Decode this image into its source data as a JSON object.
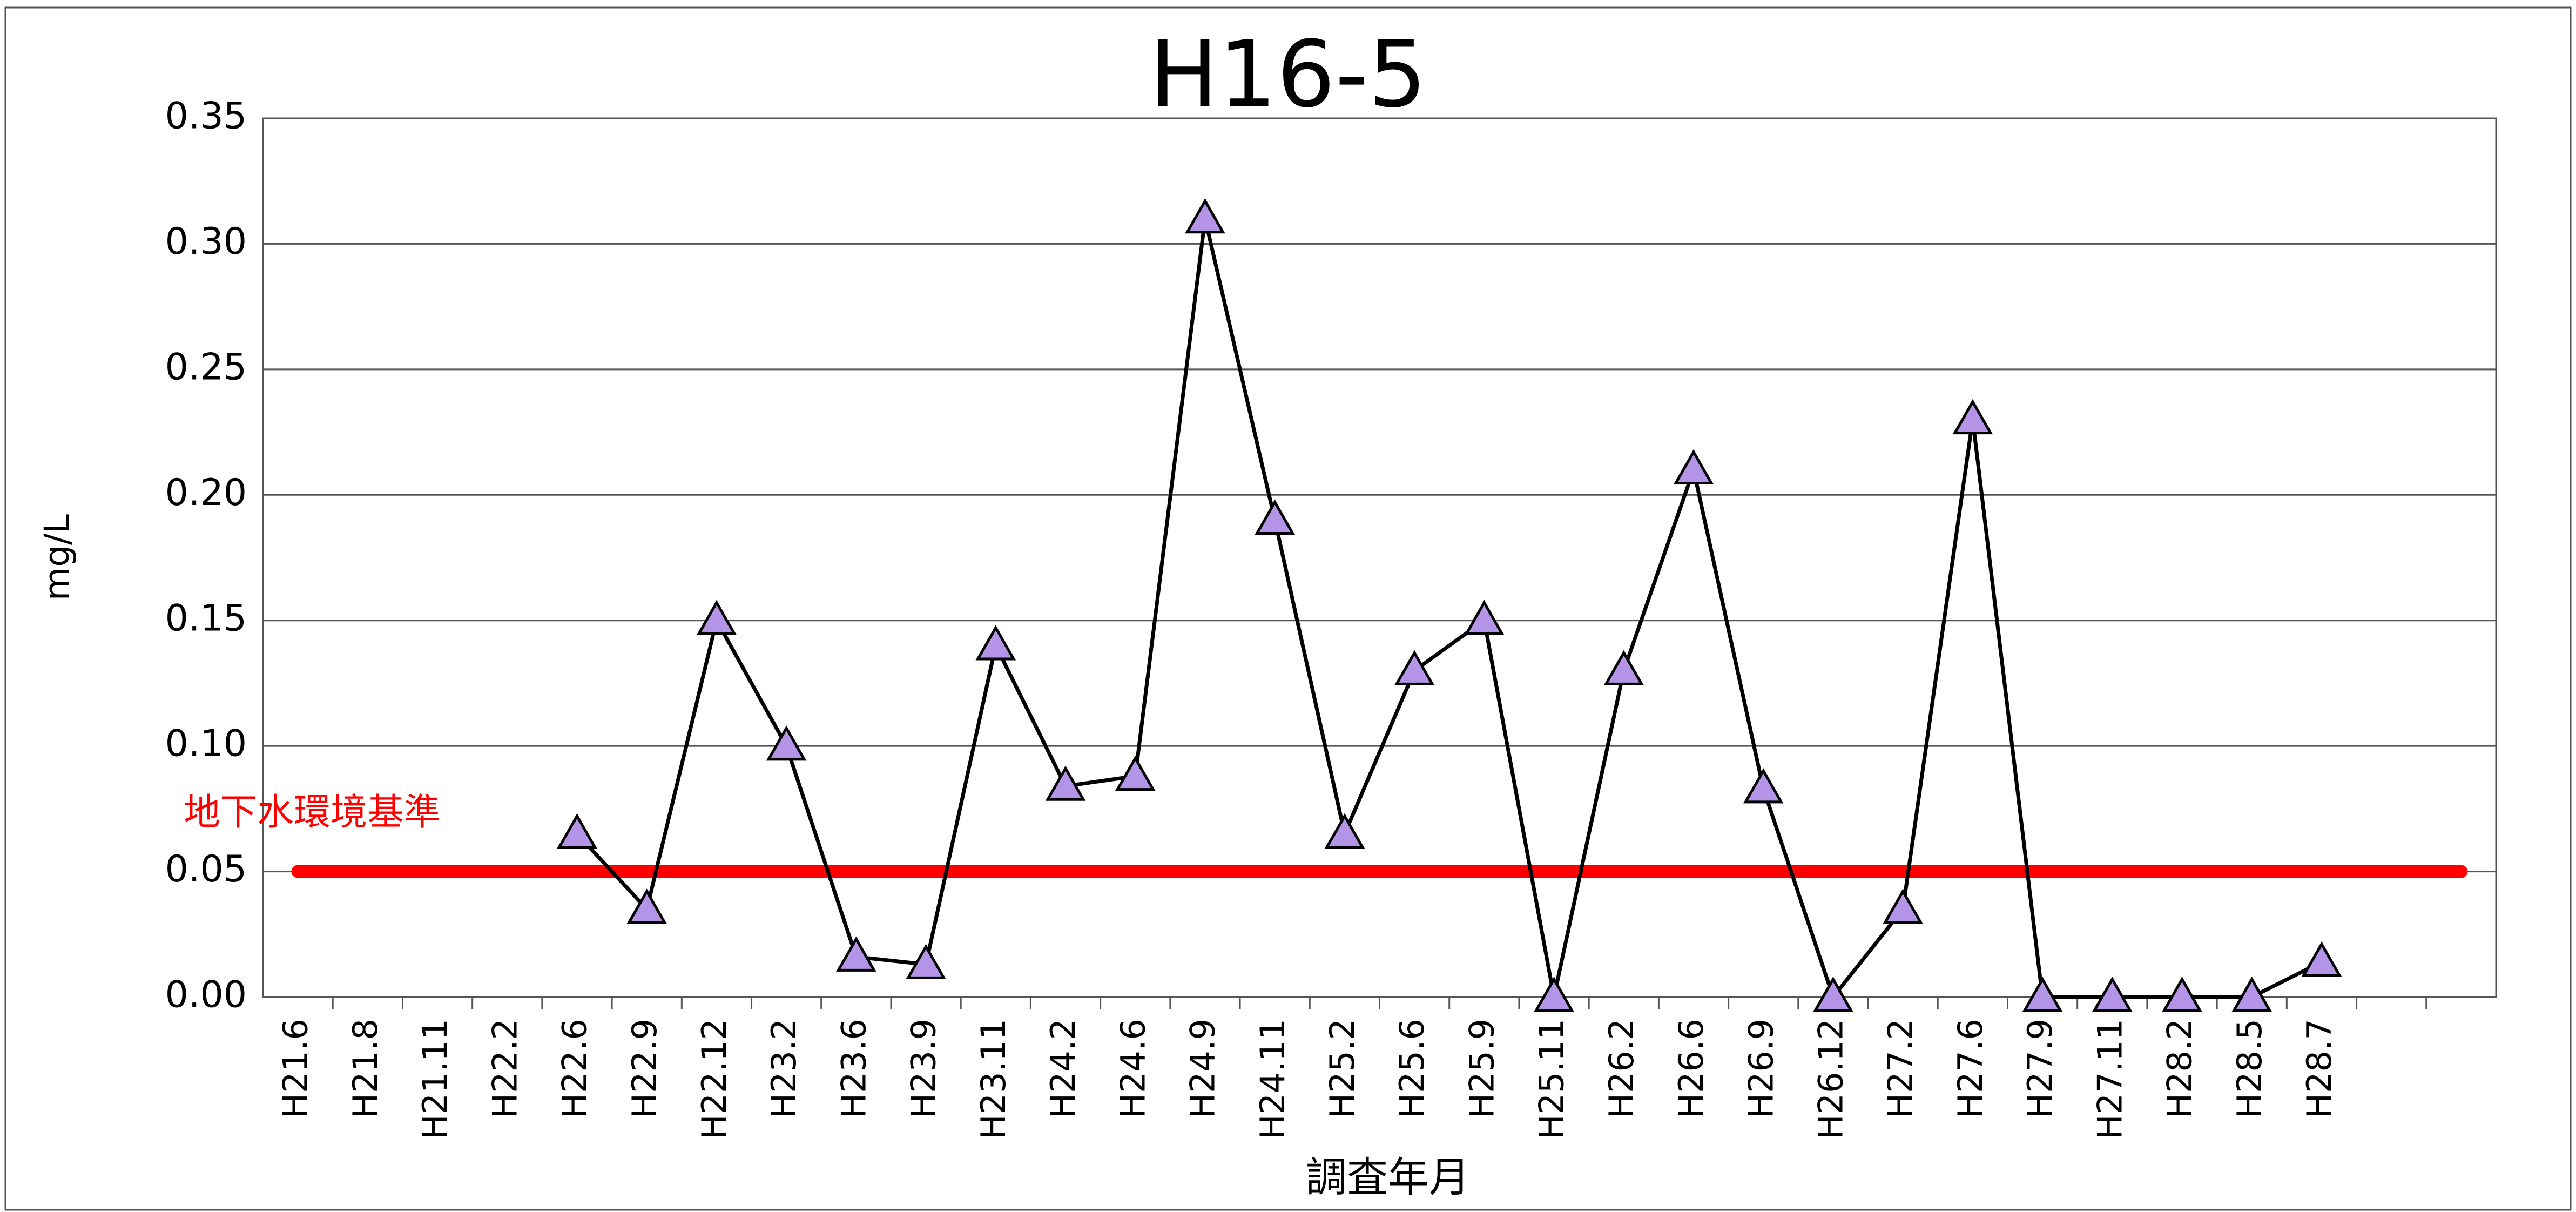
{
  "chart_data": {
    "type": "line",
    "title": "H16-5",
    "ylabel": "mg/L",
    "xlabel": "調査年月",
    "categories": [
      "H21.6",
      "H21.8",
      "H21.11",
      "H22.2",
      "H22.6",
      "H22.9",
      "H22.12",
      "H23.2",
      "H23.6",
      "H23.9",
      "H23.11",
      "H24.2",
      "H24.6",
      "H24.9",
      "H24.11",
      "H25.2",
      "H25.6",
      "H25.9",
      "H25.11",
      "H26.2",
      "H26.6",
      "H26.9",
      "H26.12",
      "H27.2",
      "H27.6",
      "H27.9",
      "H27.11",
      "H28.2",
      "H28.5",
      "H28.7",
      null,
      null
    ],
    "series": [
      {
        "name": "地下水環境基準",
        "color": "#ff0000",
        "marker": null,
        "values": [
          0.05,
          0.05,
          0.05,
          0.05,
          0.05,
          0.05,
          0.05,
          0.05,
          0.05,
          0.05,
          0.05,
          0.05,
          0.05,
          0.05,
          0.05,
          0.05,
          0.05,
          0.05,
          0.05,
          0.05,
          0.05,
          0.05,
          0.05,
          0.05,
          0.05,
          0.05,
          0.05,
          0.05,
          0.05,
          0.05,
          0.05,
          0.05
        ]
      },
      {
        "name": null,
        "color": "#000000",
        "marker": "triangle",
        "marker_color": "#b394e6",
        "values": [
          null,
          null,
          null,
          null,
          0.065,
          0.035,
          0.15,
          0.1,
          0.016,
          0.013,
          0.14,
          0.084,
          0.088,
          0.31,
          0.19,
          0.065,
          0.13,
          0.15,
          0,
          0.13,
          0.21,
          0.083,
          0,
          0.035,
          0.23,
          0,
          0,
          0,
          0,
          0.014,
          null,
          null
        ]
      }
    ],
    "ylim": [
      0,
      0.35
    ],
    "yticks": [
      {
        "value": 0,
        "label": "0.00"
      },
      {
        "value": 0.05,
        "label": "0.05"
      },
      {
        "value": 0.1,
        "label": "0.10"
      },
      {
        "value": 0.15,
        "label": "0.15"
      },
      {
        "value": 0.2,
        "label": "0.20"
      },
      {
        "value": 0.25,
        "label": "0.25"
      },
      {
        "value": 0.3,
        "label": "0.30"
      },
      {
        "value": 0.35,
        "label": "0.35"
      }
    ],
    "grid": true
  }
}
